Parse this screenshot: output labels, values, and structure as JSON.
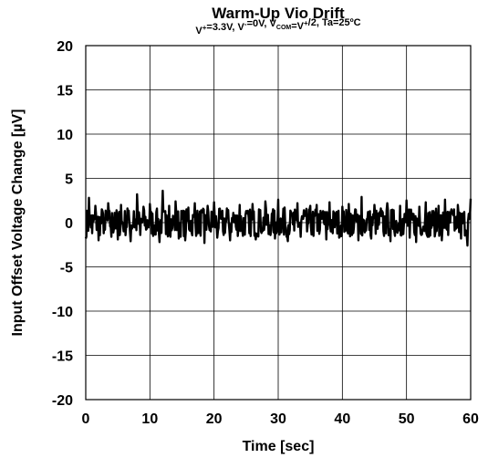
{
  "chart_data": {
    "type": "line",
    "title": "Warm-Up Vio Drift",
    "subtitle_parts": [
      {
        "t": "V",
        "s": "base"
      },
      {
        "t": "+",
        "s": "sup"
      },
      {
        "t": "=3.3V, V",
        "s": "base"
      },
      {
        "t": "-",
        "s": "sup"
      },
      {
        "t": "=0V, V",
        "s": "base"
      },
      {
        "t": "COM",
        "s": "sub"
      },
      {
        "t": "=V",
        "s": "base"
      },
      {
        "t": "+",
        "s": "sup"
      },
      {
        "t": "/2, Ta=25ºC",
        "s": "base"
      }
    ],
    "xlabel": "Time [sec]",
    "ylabel": "Input Offset Voltage Change [µV]",
    "xlim": [
      0,
      60
    ],
    "ylim": [
      -20,
      20
    ],
    "xticks": [
      0,
      10,
      20,
      30,
      40,
      50,
      60
    ],
    "yticks": [
      20,
      15,
      10,
      5,
      0,
      -5,
      -10,
      -15,
      -20
    ],
    "grid": true,
    "series": [
      {
        "color": "#000000",
        "x": [
          0,
          0.5,
          1,
          1.5,
          2,
          2.5,
          3,
          3.5,
          4,
          4.5,
          5,
          5.5,
          6,
          6.5,
          7,
          7.5,
          8,
          8.5,
          9,
          9.5,
          10,
          10.5,
          11,
          11.5,
          12,
          12.5,
          13,
          13.5,
          14,
          14.5,
          15,
          15.5,
          16,
          16.5,
          17,
          17.5,
          18,
          18.5,
          19,
          19.5,
          20,
          20.5,
          21,
          21.5,
          22,
          22.5,
          23,
          23.5,
          24,
          24.5,
          25,
          25.5,
          26,
          26.5,
          27,
          27.5,
          28,
          28.5,
          29,
          29.5,
          30,
          30.5,
          31,
          31.5,
          32,
          32.5,
          33,
          33.5,
          34,
          34.5,
          35,
          35.5,
          36,
          36.5,
          37,
          37.5,
          38,
          38.5,
          39,
          39.5,
          40,
          40.5,
          41,
          41.5,
          42,
          42.5,
          43,
          43.5,
          44,
          44.5,
          45,
          45.5,
          46,
          46.5,
          47,
          47.5,
          48,
          48.5,
          49,
          49.5,
          50,
          50.5,
          51,
          51.5,
          52,
          52.5,
          53,
          53.5,
          54,
          54.5,
          55,
          55.5,
          56,
          56.5,
          57,
          57.5,
          58,
          58.5,
          59,
          59.5,
          60
        ],
        "y": [
          -1.8,
          2.8,
          -1.2,
          1.9,
          -2.0,
          1.5,
          -0.8,
          2.2,
          -1.6,
          1.1,
          -1.9,
          2.0,
          -0.9,
          1.6,
          -2.1,
          1.3,
          3.2,
          -1.4,
          1.8,
          -0.7,
          2.1,
          -1.5,
          1.2,
          -2.2,
          3.6,
          -1.3,
          1.9,
          -0.6,
          2.4,
          -1.8,
          1.0,
          -2.0,
          1.7,
          -1.1,
          2.2,
          -0.9,
          1.4,
          -2.3,
          1.9,
          -1.0,
          2.3,
          -1.7,
          0.9,
          -1.4,
          1.6,
          -2.0,
          1.1,
          -0.8,
          2.0,
          -1.5,
          1.3,
          -1.2,
          2.1,
          -1.9,
          1.5,
          -0.7,
          2.4,
          -1.3,
          1.0,
          -1.8,
          2.6,
          -1.1,
          1.7,
          -2.1,
          1.2,
          -0.9,
          2.2,
          -1.6,
          1.4,
          -1.0,
          1.9,
          -1.5,
          2.0,
          -0.8,
          1.3,
          -1.9,
          2.3,
          -1.2,
          1.1,
          -1.7,
          1.8,
          -0.9,
          2.1,
          -1.4,
          1.5,
          -2.0,
          2.9,
          -1.1,
          1.2,
          -1.8,
          2.0,
          -0.7,
          1.6,
          -1.5,
          2.2,
          -2.1,
          1.4,
          -1.0,
          1.9,
          -1.3,
          2.5,
          -1.7,
          1.0,
          -2.2,
          1.8,
          -0.8,
          2.3,
          -1.6,
          1.3,
          -1.1,
          1.9,
          -2.0,
          2.6,
          -1.4,
          1.5,
          -0.9,
          2.0,
          -1.8,
          1.2,
          -2.6,
          2.7
        ]
      }
    ]
  }
}
